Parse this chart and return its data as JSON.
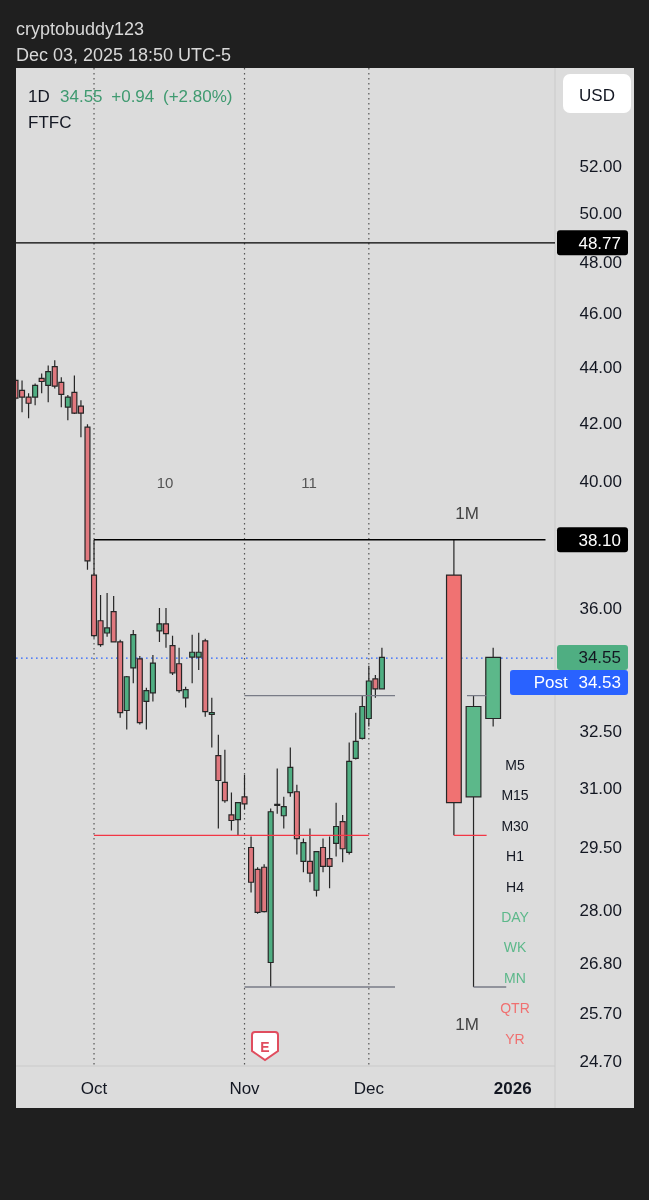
{
  "chart_data": {
    "type": "candlestick",
    "title": "1D",
    "subtitle": "34.55 +0.94 (+2.80%)",
    "annotations": [
      "cryptobuddy123",
      "Dec 03, 2025 18:50 UTC-5",
      "FTFC",
      "USD",
      "10",
      "11",
      "1M",
      "1M",
      "M5",
      "M15",
      "M30",
      "H1",
      "H4",
      "DAY",
      "WK",
      "MN",
      "QTR",
      "YR",
      "E",
      "34.55"
    ],
    "categories": [
      null,
      null,
      null,
      null,
      null,
      null,
      null,
      null,
      null,
      null,
      null,
      null,
      "Oct",
      null,
      null,
      null,
      null,
      null,
      null,
      null,
      null,
      null,
      null,
      null,
      null,
      null,
      null,
      null,
      null,
      null,
      null,
      null,
      null,
      null,
      null,
      "Nov",
      null,
      null,
      null,
      null,
      null,
      null,
      null,
      null,
      null,
      null,
      null,
      null,
      null,
      null,
      null,
      null,
      null,
      null,
      "Dec",
      null,
      null,
      null,
      null,
      null,
      null,
      null,
      null,
      null,
      null,
      null,
      null,
      null,
      null,
      null,
      null,
      null,
      null,
      null,
      null,
      null,
      "2026",
      null,
      null,
      null,
      null,
      null
    ],
    "log": "y",
    "ylim": [
      24.6,
      56.4
    ],
    "yticks": [
      {
        "value": 52,
        "label": "52.00"
      },
      {
        "value": 50,
        "label": "50.00"
      },
      {
        "value": 48,
        "label": "48.00"
      },
      {
        "value": 46,
        "label": "46.00"
      },
      {
        "value": 44,
        "label": "44.00"
      },
      {
        "value": 42,
        "label": "42.00"
      },
      {
        "value": 40,
        "label": "40.00"
      },
      {
        "value": 36,
        "label": "36.00"
      },
      {
        "value": 32.5,
        "label": "32.50"
      },
      {
        "value": 31,
        "label": "31.00"
      },
      {
        "value": 29.5,
        "label": "29.50"
      },
      {
        "value": 28,
        "label": "28.00"
      },
      {
        "value": 26.8,
        "label": "26.80"
      },
      {
        "value": 25.7,
        "label": "25.70"
      },
      {
        "value": 24.7,
        "label": "24.70"
      }
    ],
    "ref_lines": [
      {
        "axis": "x",
        "value": "Oct",
        "color": "#555555",
        "line_style": "dotted"
      },
      {
        "axis": "x",
        "value": "Nov",
        "color": "#555555",
        "line_style": "dotted"
      },
      {
        "axis": "x",
        "value": "Dec",
        "color": "#555555",
        "line_style": "dotted"
      },
      {
        "axis": "y",
        "value": 48.77,
        "label": "48.77",
        "color": "#000000"
      },
      {
        "axis": "y",
        "value": 34.53,
        "label": "Post 34.53",
        "color": "#2962ff",
        "line_style": "dotted"
      }
    ],
    "series": [
      {
        "ohlc": [
          [
            43.5,
            43.57,
            42.79,
            42.86
          ],
          [
            43.14,
            43.5,
            42.36,
            42.9
          ],
          [
            42.9,
            43.04,
            42.15,
            42.68
          ],
          [
            42.9,
            43.39,
            42.61,
            43.32
          ],
          [
            43.57,
            43.75,
            43.04,
            43.46
          ],
          [
            43.32,
            44.04,
            42.72,
            43.82
          ],
          [
            44.0,
            44.23,
            43.21,
            43.29
          ],
          [
            43.43,
            43.61,
            42.54,
            43.0
          ],
          [
            42.54,
            42.97,
            42.08,
            42.9
          ],
          [
            43.07,
            43.68,
            42.3,
            42.33
          ],
          [
            42.58,
            42.79,
            41.49,
            42.33
          ],
          [
            41.84,
            41.94,
            37.16,
            37.44
          ],
          [
            37.0,
            38.1,
            35.12,
            35.18
          ],
          [
            35.62,
            36.39,
            34.86,
            34.92
          ],
          [
            35.26,
            36.45,
            35.15,
            35.41
          ],
          [
            35.89,
            36.36,
            34.98,
            35.0
          ],
          [
            35.0,
            35.06,
            32.86,
            33.0
          ],
          [
            33.06,
            34.02,
            32.54,
            34.0
          ],
          [
            34.25,
            35.35,
            33.82,
            35.21
          ],
          [
            34.51,
            34.59,
            32.68,
            32.73
          ],
          [
            33.31,
            33.69,
            32.54,
            33.61
          ],
          [
            33.55,
            34.62,
            33.31,
            34.39
          ],
          [
            35.32,
            36.0,
            35.0,
            35.53
          ],
          [
            35.53,
            36.0,
            34.83,
            35.24
          ],
          [
            34.89,
            35.18,
            34.05,
            34.11
          ],
          [
            34.37,
            34.83,
            33.55,
            33.61
          ],
          [
            33.41,
            33.72,
            33.14,
            33.64
          ],
          [
            34.56,
            35.21,
            33.82,
            34.7
          ],
          [
            34.56,
            35.27,
            34.19,
            34.7
          ],
          [
            35.03,
            35.09,
            32.89,
            33.03
          ],
          [
            32.95,
            33.41,
            32.06,
            33.0
          ],
          [
            31.84,
            32.4,
            29.97,
            31.19
          ],
          [
            31.14,
            32.0,
            30.62,
            30.67
          ],
          [
            30.31,
            30.88,
            29.92,
            30.17
          ],
          [
            30.19,
            30.62,
            29.8,
            30.62
          ],
          [
            30.77,
            31.34,
            30.45,
            30.59
          ],
          [
            29.5,
            29.77,
            28.42,
            28.66
          ],
          [
            28.97,
            29.02,
            27.92,
            27.95
          ],
          [
            29.02,
            29.09,
            27.95,
            27.97
          ],
          [
            26.81,
            30.47,
            26.27,
            30.39
          ],
          [
            30.55,
            31.5,
            30.34,
            30.58
          ],
          [
            30.29,
            30.77,
            29.97,
            30.52
          ],
          [
            30.88,
            32.06,
            30.77,
            31.53
          ],
          [
            30.9,
            31.08,
            29.33,
            29.72
          ],
          [
            29.16,
            29.72,
            28.9,
            29.62
          ],
          [
            29.16,
            29.97,
            28.66,
            28.88
          ],
          [
            28.47,
            29.4,
            28.32,
            29.4
          ],
          [
            29.5,
            29.72,
            28.9,
            29.04
          ],
          [
            29.23,
            29.77,
            28.52,
            29.04
          ],
          [
            29.6,
            30.62,
            29.28,
            30.02
          ],
          [
            30.14,
            30.31,
            29.14,
            29.47
          ],
          [
            29.38,
            32.19,
            29.33,
            31.69
          ],
          [
            31.77,
            33.0,
            31.74,
            32.22
          ],
          [
            32.3,
            33.47,
            32.27,
            33.17
          ],
          [
            32.84,
            34.31,
            32.62,
            33.88
          ],
          [
            33.94,
            34.05,
            33.41,
            33.66
          ],
          [
            33.66,
            34.83,
            33.64,
            34.55
          ],
          null,
          null,
          null,
          null,
          null,
          null,
          null,
          null,
          null,
          null,
          null,
          null,
          null,
          null,
          null,
          null,
          null,
          null,
          null,
          null,
          null,
          null,
          null,
          null,
          null
        ],
        "colors": [
          "#e0787e",
          "#e0787e",
          "#e0787e",
          "#4fae82",
          "#e0787e",
          "#4fae82",
          "#e0787e",
          "#e0787e",
          "#4fae82",
          "#e0787e",
          "#e0787e",
          "#e0787e",
          "#e0787e",
          "#e0787e",
          "#4fae82",
          "#e0787e",
          "#e0787e",
          "#4fae82",
          "#4fae82",
          "#e0787e",
          "#4fae82",
          "#4fae82",
          "#4fae82",
          "#e0787e",
          "#e0787e",
          "#e0787e",
          "#4fae82",
          "#4fae82",
          "#4fae82",
          "#e0787e",
          "#4fae82",
          "#e0787e",
          "#e0787e",
          "#e0787e",
          "#4fae82",
          "#e0787e",
          "#e0787e",
          "#e0787e",
          "#e0787e",
          "#4fae82",
          "#4fae82",
          "#4fae82",
          "#4fae82",
          "#e0787e",
          "#4fae82",
          "#e0787e",
          "#4fae82",
          "#e0787e",
          "#e0787e",
          "#4fae82",
          "#e0787e",
          "#4fae82",
          "#4fae82",
          "#4fae82",
          "#4fae82",
          "#e0787e",
          "#4fae82",
          null,
          null,
          null,
          null,
          null,
          null,
          null,
          null,
          null,
          null,
          null,
          null,
          null,
          null,
          null,
          null,
          null,
          null,
          null,
          null,
          null,
          null,
          null,
          null,
          null
        ]
      },
      {
        "ohlc": [
          null,
          null,
          null,
          null,
          null,
          null,
          null,
          null,
          null,
          null,
          null,
          null,
          null,
          null,
          null,
          null,
          null,
          null,
          null,
          null,
          null,
          null,
          null,
          null,
          null,
          null,
          null,
          null,
          null,
          null,
          null,
          null,
          null,
          null,
          null,
          null,
          null,
          null,
          null,
          null,
          null,
          null,
          null,
          null,
          null,
          null,
          null,
          null,
          null,
          null,
          null,
          null,
          null,
          null,
          null,
          null,
          null,
          null,
          null,
          null,
          null,
          null,
          null,
          null,
          null,
          null,
          null,
          [
            37.0,
            38.1,
            29.8,
            30.62
          ],
          null,
          null,
          [
            30.77,
            33.47,
            26.27,
            33.17
          ],
          null,
          null,
          [
            32.84,
            34.83,
            32.62,
            34.55
          ],
          null,
          null,
          null,
          null,
          null,
          null,
          null,
          null
        ],
        "colors": [
          null,
          null,
          null,
          null,
          null,
          null,
          null,
          null,
          null,
          null,
          null,
          null,
          null,
          null,
          null,
          null,
          null,
          null,
          null,
          null,
          null,
          null,
          null,
          null,
          null,
          null,
          null,
          null,
          null,
          null,
          null,
          null,
          null,
          null,
          null,
          null,
          null,
          null,
          null,
          null,
          null,
          null,
          null,
          null,
          null,
          null,
          null,
          null,
          null,
          null,
          null,
          null,
          null,
          null,
          null,
          null,
          null,
          null,
          null,
          null,
          null,
          null,
          null,
          null,
          null,
          null,
          null,
          "#f07272",
          null,
          null,
          "#5cb88a",
          null,
          null,
          "#5cb88a",
          null,
          null,
          null,
          null,
          null,
          null,
          null,
          null
        ]
      },
      {
        "type": "line",
        "name": "38.10",
        "color": "#000000",
        "values": [
          null,
          null,
          null,
          null,
          null,
          null,
          null,
          null,
          null,
          null,
          null,
          null,
          38.1,
          38.1,
          38.1,
          38.1,
          38.1,
          38.1,
          38.1,
          38.1,
          38.1,
          38.1,
          38.1,
          38.1,
          38.1,
          38.1,
          38.1,
          38.1,
          38.1,
          38.1,
          38.1,
          38.1,
          38.1,
          38.1,
          38.1,
          38.1,
          38.1,
          38.1,
          38.1,
          38.1,
          38.1,
          38.1,
          38.1,
          38.1,
          38.1,
          38.1,
          38.1,
          38.1,
          38.1,
          38.1,
          38.1,
          38.1,
          38.1,
          38.1,
          38.1,
          38.1,
          38.1,
          38.1,
          38.1,
          38.1,
          38.1,
          38.1,
          38.1,
          38.1,
          38.1,
          38.1,
          38.1,
          38.1,
          38.1,
          38.1,
          38.1,
          38.1,
          38.1,
          38.1,
          38.1,
          38.1,
          38.1,
          38.1,
          38.1,
          38.1,
          38.1,
          38.1
        ]
      },
      {
        "type": "line",
        "color": "#f23645",
        "values": [
          null,
          null,
          null,
          null,
          null,
          null,
          null,
          null,
          null,
          null,
          null,
          null,
          29.8,
          29.8,
          29.8,
          29.8,
          29.8,
          29.8,
          29.8,
          29.8,
          29.8,
          29.8,
          29.8,
          29.8,
          29.8,
          29.8,
          29.8,
          29.8,
          29.8,
          29.8,
          29.8,
          29.8,
          29.8,
          29.8,
          29.8,
          29.8,
          29.8,
          29.8,
          29.8,
          29.8,
          29.8,
          29.8,
          29.8,
          29.8,
          29.8,
          29.8,
          29.8,
          29.8,
          29.8,
          29.8,
          29.8,
          29.8,
          29.8,
          29.8,
          29.8,
          null,
          null,
          null,
          null,
          null,
          null,
          null,
          null,
          null,
          null,
          null,
          null,
          29.8,
          29.8,
          29.8,
          29.8,
          29.8,
          29.8,
          null,
          null,
          null,
          null,
          null,
          null,
          null,
          null,
          null
        ]
      },
      {
        "type": "line",
        "color": "#787b86",
        "values": [
          null,
          null,
          null,
          null,
          null,
          null,
          null,
          null,
          null,
          null,
          null,
          null,
          null,
          null,
          null,
          null,
          null,
          null,
          null,
          null,
          null,
          null,
          null,
          null,
          null,
          null,
          null,
          null,
          null,
          null,
          null,
          null,
          null,
          null,
          null,
          33.47,
          33.47,
          33.47,
          33.47,
          33.47,
          33.47,
          33.47,
          33.47,
          33.47,
          33.47,
          33.47,
          33.47,
          33.47,
          33.47,
          33.47,
          33.47,
          33.47,
          33.47,
          33.47,
          33.47,
          33.47,
          33.47,
          33.47,
          33.47,
          null,
          null,
          null,
          null,
          null,
          null,
          null,
          null,
          null,
          null,
          33.47,
          33.47,
          33.47,
          33.47,
          null,
          null,
          null,
          null,
          null,
          null,
          null,
          null,
          null
        ]
      },
      {
        "type": "line",
        "color": "#787b86",
        "values": [
          null,
          null,
          null,
          null,
          null,
          null,
          null,
          null,
          null,
          null,
          null,
          null,
          null,
          null,
          null,
          null,
          null,
          null,
          null,
          null,
          null,
          null,
          null,
          null,
          null,
          null,
          null,
          null,
          null,
          null,
          null,
          null,
          null,
          null,
          null,
          26.27,
          26.27,
          26.27,
          26.27,
          26.27,
          26.27,
          26.27,
          26.27,
          26.27,
          26.27,
          26.27,
          26.27,
          26.27,
          26.27,
          26.27,
          26.27,
          26.27,
          26.27,
          26.27,
          26.27,
          26.27,
          26.27,
          26.27,
          26.27,
          null,
          null,
          null,
          null,
          null,
          null,
          null,
          null,
          null,
          null,
          null,
          26.27,
          26.27,
          26.27,
          26.27,
          26.27,
          26.27,
          null,
          null,
          null,
          null,
          null,
          null
        ]
      }
    ]
  }
}
